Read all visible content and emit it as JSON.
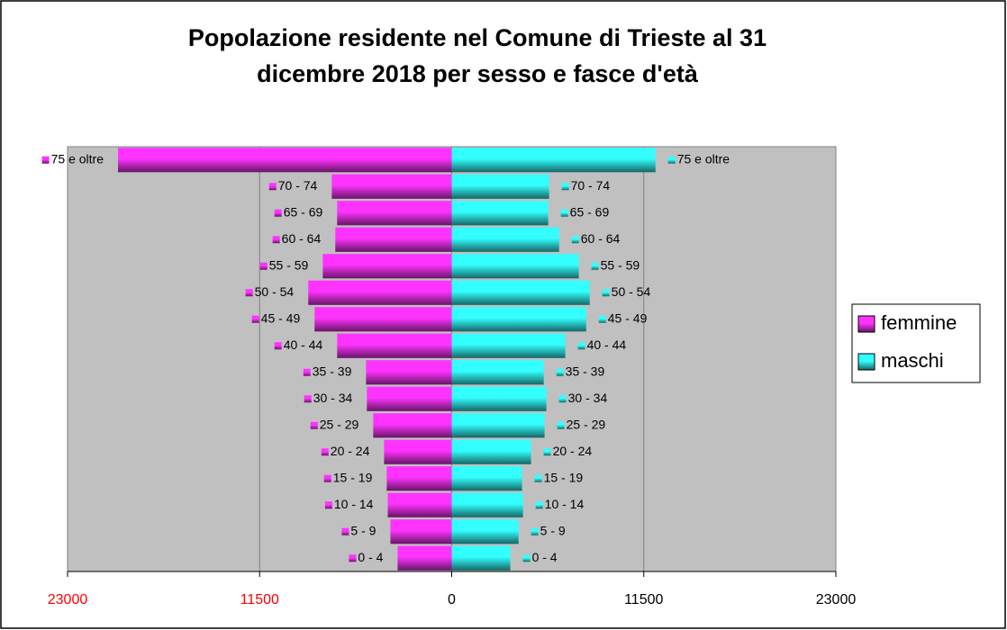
{
  "chart_data": {
    "type": "pyramid",
    "title": "Popolazione residente nel Comune di Trieste al 31 dicembre 2018 per sesso e fasce d'età",
    "categories": [
      "0 - 4",
      "5 - 9",
      "10 - 14",
      "15 - 19",
      "20 - 24",
      "25 - 29",
      "30 - 34",
      "35 - 39",
      "40 - 44",
      "45 - 49",
      "50 - 54",
      "55 - 59",
      "60 - 64",
      "65 - 69",
      "70 - 74",
      "75 e oltre"
    ],
    "series": [
      {
        "name": "femmine",
        "color": "#ff33ff",
        "values": [
          -3240,
          -3670,
          -3830,
          -3890,
          -4050,
          -4700,
          -5080,
          -5130,
          -6860,
          -8210,
          -8590,
          -7720,
          -6970,
          -6860,
          -7180,
          -19980
        ]
      },
      {
        "name": "maschi",
        "color": "#33ffff",
        "values": [
          3510,
          4000,
          4270,
          4210,
          4750,
          5560,
          5670,
          5510,
          6800,
          8050,
          8260,
          7610,
          6430,
          5780,
          5830,
          12200
        ]
      }
    ],
    "xlim": [
      -23000,
      23000
    ],
    "xticks": [
      {
        "value": -23000,
        "label": "23000"
      },
      {
        "value": -11500,
        "label": "11500"
      },
      0,
      11500,
      23000
    ],
    "grid": true,
    "legend": "right"
  }
}
